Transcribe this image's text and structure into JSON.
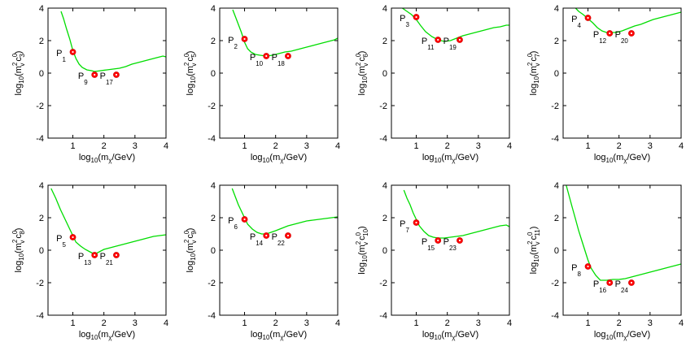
{
  "chart_data": [
    {
      "type": "line",
      "xlabel": "log10(mχ/GeV)",
      "ylabel": "log10(m²v c⁰3)",
      "c_index": "3",
      "xlim": [
        0.2,
        4
      ],
      "ylim": [
        -4,
        4
      ],
      "xticks": [
        1,
        2,
        3,
        4
      ],
      "yticks": [
        -4,
        -2,
        0,
        2,
        4
      ],
      "series": [
        {
          "name": "limit",
          "x": [
            0.62,
            0.7,
            0.8,
            0.9,
            1.0,
            1.1,
            1.2,
            1.3,
            1.45,
            1.6,
            1.7,
            1.9,
            2.1,
            2.3,
            2.5,
            2.7,
            2.9,
            3.1,
            3.3,
            3.5,
            3.7,
            3.9,
            4.0
          ],
          "y": [
            3.8,
            3.35,
            2.7,
            2.1,
            1.4,
            0.9,
            0.55,
            0.35,
            0.2,
            0.15,
            0.1,
            0.15,
            0.2,
            0.25,
            0.3,
            0.4,
            0.55,
            0.65,
            0.75,
            0.85,
            0.95,
            1.05,
            1.0
          ]
        }
      ],
      "points": [
        {
          "label": "P",
          "sub": "1",
          "x": 1.0,
          "y": 1.3
        },
        {
          "label": "P",
          "sub": "9",
          "x": 1.7,
          "y": -0.1
        },
        {
          "label": "P",
          "sub": "17",
          "x": 2.4,
          "y": -0.1
        }
      ]
    },
    {
      "type": "line",
      "xlabel": "log10(mχ/GeV)",
      "ylabel": "log10(m²v c⁰5)",
      "c_index": "5",
      "xlim": [
        0.2,
        4
      ],
      "ylim": [
        -4,
        4
      ],
      "xticks": [
        1,
        2,
        3,
        4
      ],
      "yticks": [
        -4,
        -2,
        0,
        2,
        4
      ],
      "series": [
        {
          "name": "limit",
          "x": [
            0.62,
            0.7,
            0.8,
            0.9,
            1.0,
            1.1,
            1.2,
            1.35,
            1.5,
            1.7,
            1.9,
            2.1,
            2.3,
            2.5,
            2.7,
            2.9,
            3.1,
            3.3,
            3.5,
            3.7,
            3.9,
            4.0
          ],
          "y": [
            3.9,
            3.5,
            3.0,
            2.5,
            1.9,
            1.5,
            1.3,
            1.15,
            1.1,
            1.05,
            1.1,
            1.2,
            1.3,
            1.35,
            1.45,
            1.55,
            1.65,
            1.75,
            1.85,
            1.95,
            2.05,
            2.15
          ]
        }
      ],
      "points": [
        {
          "label": "P",
          "sub": "2",
          "x": 1.0,
          "y": 2.1
        },
        {
          "label": "P",
          "sub": "10",
          "x": 1.7,
          "y": 1.05
        },
        {
          "label": "P",
          "sub": "18",
          "x": 2.4,
          "y": 1.05
        }
      ]
    },
    {
      "type": "line",
      "xlabel": "log10(mχ/GeV)",
      "ylabel": "log10(m²v c⁰6)",
      "c_index": "6",
      "xlim": [
        0.2,
        4
      ],
      "ylim": [
        -4,
        4
      ],
      "xticks": [
        1,
        2,
        3,
        4
      ],
      "yticks": [
        -4,
        -2,
        0,
        2,
        4
      ],
      "series": [
        {
          "name": "limit",
          "x": [
            0.55,
            0.7,
            0.85,
            1.0,
            1.15,
            1.3,
            1.5,
            1.7,
            1.9,
            2.1,
            2.3,
            2.5,
            2.7,
            2.9,
            3.1,
            3.3,
            3.5,
            3.7,
            3.9,
            4.0
          ],
          "y": [
            4.0,
            3.8,
            3.6,
            3.3,
            2.9,
            2.55,
            2.25,
            2.05,
            1.95,
            2.0,
            2.15,
            2.3,
            2.4,
            2.5,
            2.6,
            2.7,
            2.8,
            2.85,
            2.95,
            2.95
          ]
        }
      ],
      "points": [
        {
          "label": "P",
          "sub": "3",
          "x": 1.0,
          "y": 3.45
        },
        {
          "label": "P",
          "sub": "11",
          "x": 1.7,
          "y": 2.05
        },
        {
          "label": "P",
          "sub": "19",
          "x": 2.4,
          "y": 2.05
        }
      ]
    },
    {
      "type": "line",
      "xlabel": "log10(mχ/GeV)",
      "ylabel": "log10(m²v c⁰7)",
      "c_index": "7",
      "xlim": [
        0.2,
        4
      ],
      "ylim": [
        -4,
        4
      ],
      "xticks": [
        1,
        2,
        3,
        4
      ],
      "yticks": [
        -4,
        -2,
        0,
        2,
        4
      ],
      "series": [
        {
          "name": "limit",
          "x": [
            0.6,
            0.7,
            0.85,
            1.0,
            1.15,
            1.3,
            1.45,
            1.6,
            1.75,
            1.9,
            2.1,
            2.3,
            2.5,
            2.7,
            2.9,
            3.1,
            3.3,
            3.5,
            3.7,
            3.9,
            4.0
          ],
          "y": [
            4.0,
            3.8,
            3.6,
            3.35,
            3.1,
            2.8,
            2.6,
            2.5,
            2.5,
            2.5,
            2.6,
            2.75,
            2.9,
            3.0,
            3.15,
            3.3,
            3.4,
            3.5,
            3.6,
            3.7,
            3.75
          ]
        }
      ],
      "points": [
        {
          "label": "P",
          "sub": "4",
          "x": 1.0,
          "y": 3.4
        },
        {
          "label": "P",
          "sub": "12",
          "x": 1.7,
          "y": 2.45
        },
        {
          "label": "P",
          "sub": "20",
          "x": 2.4,
          "y": 2.45
        }
      ]
    },
    {
      "type": "line",
      "xlabel": "log10(mχ/GeV)",
      "ylabel": "log10(m²v c⁰8)",
      "c_index": "8",
      "xlim": [
        0.2,
        4
      ],
      "ylim": [
        -4,
        4
      ],
      "xticks": [
        1,
        2,
        3,
        4
      ],
      "yticks": [
        -4,
        -2,
        0,
        2,
        4
      ],
      "series": [
        {
          "name": "limit",
          "x": [
            0.3,
            0.45,
            0.6,
            0.75,
            0.9,
            1.0,
            1.1,
            1.25,
            1.4,
            1.55,
            1.7,
            1.85,
            2.0,
            2.2,
            2.4,
            2.6,
            2.8,
            3.0,
            3.2,
            3.4,
            3.6,
            3.8,
            4.0
          ],
          "y": [
            3.8,
            3.2,
            2.5,
            1.9,
            1.3,
            0.9,
            0.5,
            0.25,
            0.05,
            -0.1,
            -0.25,
            -0.1,
            0.05,
            0.15,
            0.25,
            0.35,
            0.45,
            0.55,
            0.65,
            0.75,
            0.85,
            0.9,
            0.95
          ]
        }
      ],
      "points": [
        {
          "label": "P",
          "sub": "5",
          "x": 1.0,
          "y": 0.8
        },
        {
          "label": "P",
          "sub": "13",
          "x": 1.7,
          "y": -0.3
        },
        {
          "label": "P",
          "sub": "21",
          "x": 2.4,
          "y": -0.3
        }
      ]
    },
    {
      "type": "line",
      "xlabel": "log10(mχ/GeV)",
      "ylabel": "log10(m²v c⁰9)",
      "c_index": "9",
      "xlim": [
        0.2,
        4
      ],
      "ylim": [
        -4,
        4
      ],
      "xticks": [
        1,
        2,
        3,
        4
      ],
      "yticks": [
        -4,
        -2,
        0,
        2,
        4
      ],
      "series": [
        {
          "name": "limit",
          "x": [
            0.6,
            0.7,
            0.8,
            0.9,
            1.0,
            1.1,
            1.25,
            1.4,
            1.55,
            1.7,
            1.85,
            2.0,
            2.2,
            2.4,
            2.6,
            2.8,
            3.0,
            3.2,
            3.4,
            3.6,
            3.8,
            4.0
          ],
          "y": [
            3.8,
            3.3,
            2.8,
            2.4,
            2.0,
            1.6,
            1.3,
            1.1,
            1.0,
            1.0,
            1.1,
            1.2,
            1.35,
            1.5,
            1.6,
            1.7,
            1.8,
            1.85,
            1.9,
            1.95,
            2.0,
            2.05
          ]
        }
      ],
      "points": [
        {
          "label": "P",
          "sub": "6",
          "x": 1.0,
          "y": 1.9
        },
        {
          "label": "P",
          "sub": "14",
          "x": 1.7,
          "y": 0.9
        },
        {
          "label": "P",
          "sub": "22",
          "x": 2.4,
          "y": 0.9
        }
      ]
    },
    {
      "type": "line",
      "xlabel": "log10(mχ/GeV)",
      "ylabel": "log10(m²v c⁰10)",
      "c_index": "10",
      "xlim": [
        0.2,
        4
      ],
      "ylim": [
        -4,
        4
      ],
      "xticks": [
        1,
        2,
        3,
        4
      ],
      "yticks": [
        -4,
        -2,
        0,
        2,
        4
      ],
      "series": [
        {
          "name": "limit",
          "x": [
            0.6,
            0.7,
            0.8,
            0.9,
            1.0,
            1.1,
            1.25,
            1.4,
            1.55,
            1.7,
            1.9,
            2.1,
            2.3,
            2.5,
            2.7,
            2.9,
            3.1,
            3.3,
            3.5,
            3.7,
            3.9,
            4.0
          ],
          "y": [
            3.7,
            3.2,
            2.8,
            2.3,
            1.9,
            1.5,
            1.15,
            0.9,
            0.8,
            0.75,
            0.75,
            0.8,
            0.85,
            0.9,
            1.0,
            1.1,
            1.2,
            1.3,
            1.4,
            1.5,
            1.55,
            1.45
          ]
        }
      ],
      "points": [
        {
          "label": "P",
          "sub": "7",
          "x": 1.0,
          "y": 1.7
        },
        {
          "label": "P",
          "sub": "15",
          "x": 1.7,
          "y": 0.6
        },
        {
          "label": "P",
          "sub": "23",
          "x": 2.4,
          "y": 0.6
        }
      ]
    },
    {
      "type": "line",
      "xlabel": "log10(mχ/GeV)",
      "ylabel": "log10(m²v c⁰11)",
      "c_index": "11",
      "xlim": [
        0.2,
        4
      ],
      "ylim": [
        -4,
        4
      ],
      "xticks": [
        1,
        2,
        3,
        4
      ],
      "yticks": [
        -4,
        -2,
        0,
        2,
        4
      ],
      "series": [
        {
          "name": "limit",
          "x": [
            0.3,
            0.4,
            0.5,
            0.6,
            0.7,
            0.8,
            0.9,
            1.0,
            1.1,
            1.25,
            1.4,
            1.6,
            1.8,
            2.0,
            2.2,
            2.4,
            2.6,
            2.8,
            3.0,
            3.2,
            3.4,
            3.6,
            3.8,
            4.0
          ],
          "y": [
            4.0,
            3.3,
            2.6,
            1.9,
            1.2,
            0.6,
            0.0,
            -0.6,
            -1.1,
            -1.55,
            -1.85,
            -1.85,
            -1.8,
            -1.8,
            -1.75,
            -1.65,
            -1.55,
            -1.45,
            -1.35,
            -1.25,
            -1.15,
            -1.05,
            -0.95,
            -0.85
          ]
        }
      ],
      "points": [
        {
          "label": "P",
          "sub": "8",
          "x": 1.0,
          "y": -1.0
        },
        {
          "label": "P",
          "sub": "16",
          "x": 1.7,
          "y": -2.0
        },
        {
          "label": "P",
          "sub": "24",
          "x": 2.4,
          "y": -2.0
        }
      ]
    }
  ],
  "axis_text": {
    "x_prefix": "log",
    "x_base": "10",
    "x_open": "(m",
    "x_sub": "χ",
    "x_close": "/GeV)",
    "y_prefix": "log",
    "y_base": "10",
    "y_open": "(m",
    "y_sup": "2",
    "y_sub_v": "v",
    "y_c": "c",
    "y_sup0": "0",
    "y_close": ")"
  },
  "colors": {
    "line": "#00dd00",
    "marker_fill": "#ff0000",
    "marker_center": "#ffffff",
    "axis": "#000000"
  }
}
